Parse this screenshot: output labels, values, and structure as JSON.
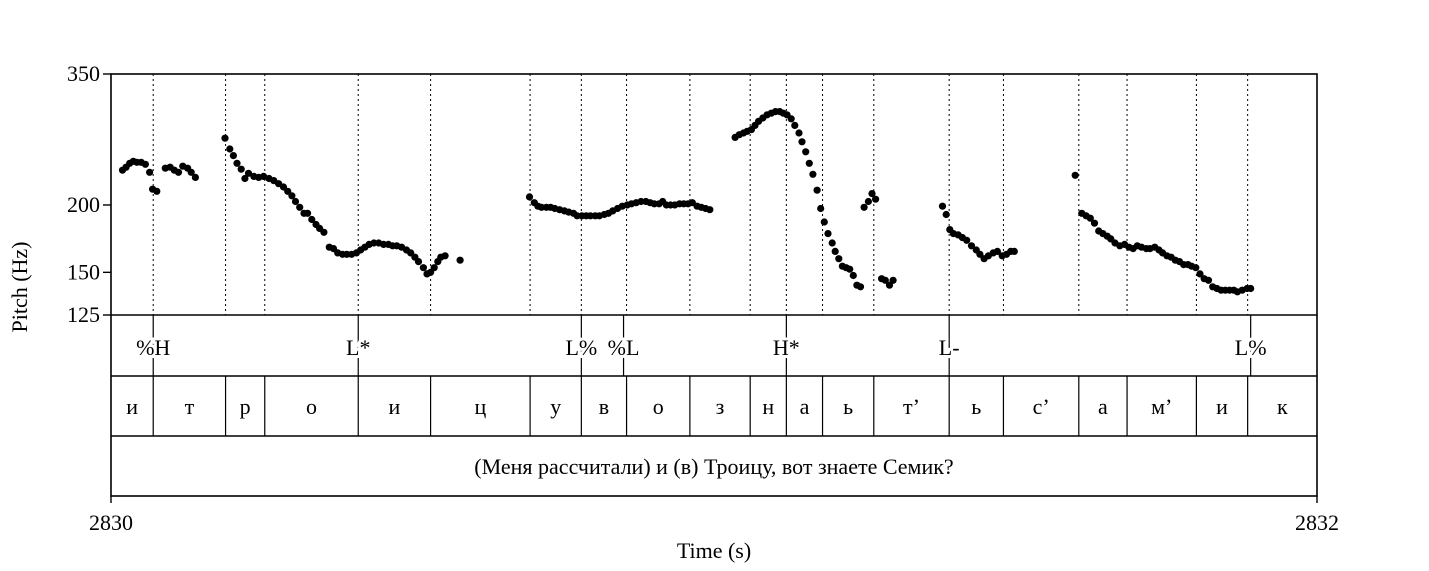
{
  "chart_data": {
    "type": "scatter",
    "xlabel": "Time (s)",
    "ylabel": "Pitch (Hz)",
    "xlim": [
      2830,
      2832
    ],
    "ylim": [
      125,
      350
    ],
    "yscale": "log",
    "x_ticks": [
      "2830",
      "2832"
    ],
    "y_ticks": [
      {
        "label": "350",
        "value": 350
      },
      {
        "label": "200",
        "value": 200
      },
      {
        "label": "150",
        "value": 150
      },
      {
        "label": "125",
        "value": 125
      }
    ],
    "grid": false,
    "tones": [
      {
        "label": "%H",
        "t": 2830.07
      },
      {
        "label": "L*",
        "t": 2830.41
      },
      {
        "label": "L%",
        "t": 2830.78
      },
      {
        "label": "%L",
        "t": 2830.85
      },
      {
        "label": "H*",
        "t": 2831.12
      },
      {
        "label": "L-",
        "t": 2831.39
      },
      {
        "label": "L%",
        "t": 2831.89
      }
    ],
    "segments": [
      {
        "label": "и",
        "start": 2830.0,
        "end": 2830.07
      },
      {
        "label": "т",
        "start": 2830.07,
        "end": 2830.19
      },
      {
        "label": "р",
        "start": 2830.19,
        "end": 2830.255
      },
      {
        "label": "о",
        "start": 2830.255,
        "end": 2830.41
      },
      {
        "label": "и",
        "start": 2830.41,
        "end": 2830.53
      },
      {
        "label": "ц",
        "start": 2830.53,
        "end": 2830.695
      },
      {
        "label": "у",
        "start": 2830.695,
        "end": 2830.78
      },
      {
        "label": "в",
        "start": 2830.78,
        "end": 2830.855
      },
      {
        "label": "о",
        "start": 2830.855,
        "end": 2830.96
      },
      {
        "label": "з",
        "start": 2830.96,
        "end": 2831.06
      },
      {
        "label": "н",
        "start": 2831.06,
        "end": 2831.12
      },
      {
        "label": "а",
        "start": 2831.12,
        "end": 2831.18
      },
      {
        "label": "ь",
        "start": 2831.18,
        "end": 2831.265
      },
      {
        "label": "т’",
        "start": 2831.265,
        "end": 2831.39
      },
      {
        "label": "ь",
        "start": 2831.39,
        "end": 2831.48
      },
      {
        "label": "с’",
        "start": 2831.48,
        "end": 2831.605
      },
      {
        "label": "а",
        "start": 2831.605,
        "end": 2831.685
      },
      {
        "label": "м’",
        "start": 2831.685,
        "end": 2831.8
      },
      {
        "label": "и",
        "start": 2831.8,
        "end": 2831.885
      },
      {
        "label": "к",
        "start": 2831.885,
        "end": 2832.0
      }
    ],
    "sentence": "(Меня рассчитали) и (в) Троицу, вот знаете Семик?",
    "series": [
      {
        "points": [
          [
            2830.019,
            232
          ],
          [
            2830.025,
            235
          ],
          [
            2830.031,
            239
          ],
          [
            2830.037,
            241
          ],
          [
            2830.043,
            240
          ],
          [
            2830.05,
            240
          ],
          [
            2830.057,
            238
          ],
          [
            2830.064,
            230
          ],
          [
            2830.069,
            214
          ],
          [
            2830.076,
            212
          ],
          [
            2830.09,
            234
          ],
          [
            2830.098,
            235
          ],
          [
            2830.105,
            232
          ],
          [
            2830.112,
            230
          ],
          [
            2830.119,
            236
          ],
          [
            2830.127,
            234
          ],
          [
            2830.133,
            230
          ],
          [
            2830.14,
            225
          ],
          [
            2830.189,
            266
          ],
          [
            2830.197,
            254
          ],
          [
            2830.203,
            247
          ],
          [
            2830.209,
            239
          ],
          [
            2830.216,
            233
          ],
          [
            2830.222,
            224
          ],
          [
            2830.228,
            229
          ],
          [
            2830.237,
            226
          ],
          [
            2830.245,
            225
          ],
          [
            2830.253,
            226
          ],
          [
            2830.262,
            224
          ],
          [
            2830.27,
            222
          ],
          [
            2830.278,
            219
          ],
          [
            2830.286,
            216
          ],
          [
            2830.293,
            212
          ],
          [
            2830.3,
            208
          ],
          [
            2830.306,
            203
          ],
          [
            2830.313,
            198
          ],
          [
            2830.32,
            193
          ],
          [
            2830.326,
            193
          ],
          [
            2830.333,
            188
          ],
          [
            2830.34,
            184
          ],
          [
            2830.346,
            181
          ],
          [
            2830.353,
            178
          ],
          [
            2830.362,
            167
          ],
          [
            2830.369,
            166
          ],
          [
            2830.376,
            163
          ],
          [
            2830.384,
            162
          ],
          [
            2830.391,
            162
          ],
          [
            2830.399,
            162
          ],
          [
            2830.407,
            163
          ],
          [
            2830.414,
            165
          ],
          [
            2830.421,
            167
          ],
          [
            2830.428,
            169
          ],
          [
            2830.436,
            170
          ],
          [
            2830.444,
            170
          ],
          [
            2830.452,
            169
          ],
          [
            2830.46,
            169
          ],
          [
            2830.467,
            168
          ],
          [
            2830.474,
            168
          ],
          [
            2830.482,
            167
          ],
          [
            2830.49,
            165
          ],
          [
            2830.497,
            163
          ],
          [
            2830.504,
            160
          ],
          [
            2830.51,
            157
          ],
          [
            2830.518,
            153
          ],
          [
            2830.524,
            149
          ],
          [
            2830.53,
            150
          ],
          [
            2830.536,
            153
          ],
          [
            2830.542,
            157
          ],
          [
            2830.547,
            160
          ],
          [
            2830.554,
            161
          ],
          [
            2830.579,
            158
          ],
          [
            2830.694,
            207
          ],
          [
            2830.702,
            202
          ],
          [
            2830.708,
            199
          ],
          [
            2830.714,
            198
          ],
          [
            2830.722,
            198
          ],
          [
            2830.729,
            198
          ],
          [
            2830.736,
            197
          ],
          [
            2830.744,
            196
          ],
          [
            2830.752,
            195
          ],
          [
            2830.759,
            194
          ],
          [
            2830.767,
            193
          ],
          [
            2830.773,
            191
          ],
          [
            2830.781,
            191
          ],
          [
            2830.788,
            191
          ],
          [
            2830.795,
            191
          ],
          [
            2830.803,
            191
          ],
          [
            2830.81,
            191
          ],
          [
            2830.818,
            192
          ],
          [
            2830.825,
            193
          ],
          [
            2830.832,
            195
          ],
          [
            2830.84,
            197
          ],
          [
            2830.848,
            199
          ],
          [
            2830.856,
            200
          ],
          [
            2830.863,
            201
          ],
          [
            2830.871,
            202
          ],
          [
            2830.879,
            203
          ],
          [
            2830.887,
            203
          ],
          [
            2830.894,
            202
          ],
          [
            2830.901,
            201
          ],
          [
            2830.909,
            201
          ],
          [
            2830.915,
            203
          ],
          [
            2830.921,
            200
          ],
          [
            2830.928,
            200
          ],
          [
            2830.935,
            200
          ],
          [
            2830.943,
            201
          ],
          [
            2830.95,
            201
          ],
          [
            2830.957,
            201
          ],
          [
            2830.964,
            202
          ],
          [
            2830.972,
            199
          ],
          [
            2830.979,
            198
          ],
          [
            2830.986,
            197
          ],
          [
            2830.993,
            196
          ],
          [
            2831.035,
            267
          ],
          [
            2831.042,
            270
          ],
          [
            2831.049,
            272
          ],
          [
            2831.055,
            274
          ],
          [
            2831.062,
            276
          ],
          [
            2831.068,
            281
          ],
          [
            2831.074,
            286
          ],
          [
            2831.081,
            290
          ],
          [
            2831.088,
            294
          ],
          [
            2831.095,
            296
          ],
          [
            2831.102,
            298
          ],
          [
            2831.109,
            298
          ],
          [
            2831.115,
            296
          ],
          [
            2831.121,
            294
          ],
          [
            2831.128,
            289
          ],
          [
            2831.134,
            281
          ],
          [
            2831.141,
            272
          ],
          [
            2831.146,
            262
          ],
          [
            2831.152,
            251
          ],
          [
            2831.158,
            239
          ],
          [
            2831.164,
            228
          ],
          [
            2831.171,
            213
          ],
          [
            2831.177,
            197
          ],
          [
            2831.183,
            186
          ],
          [
            2831.189,
            177
          ],
          [
            2831.196,
            170
          ],
          [
            2831.201,
            164
          ],
          [
            2831.207,
            159
          ],
          [
            2831.213,
            154
          ],
          [
            2831.219,
            153
          ],
          [
            2831.225,
            152
          ],
          [
            2831.231,
            148
          ],
          [
            2831.237,
            142
          ],
          [
            2831.243,
            141
          ],
          [
            2831.249,
            198
          ],
          [
            2831.256,
            203
          ],
          [
            2831.262,
            210
          ],
          [
            2831.268,
            205
          ],
          [
            2831.278,
            146
          ],
          [
            2831.284,
            145
          ],
          [
            2831.291,
            142
          ],
          [
            2831.297,
            145
          ],
          [
            2831.379,
            199
          ],
          [
            2831.385,
            192
          ],
          [
            2831.391,
            180
          ],
          [
            2831.397,
            177
          ],
          [
            2831.405,
            176
          ],
          [
            2831.412,
            174
          ],
          [
            2831.419,
            172
          ],
          [
            2831.427,
            168
          ],
          [
            2831.435,
            165
          ],
          [
            2831.441,
            162
          ],
          [
            2831.448,
            159
          ],
          [
            2831.455,
            161
          ],
          [
            2831.463,
            163
          ],
          [
            2831.47,
            164
          ],
          [
            2831.478,
            161
          ],
          [
            2831.485,
            162
          ],
          [
            2831.492,
            164
          ],
          [
            2831.498,
            164
          ],
          [
            2831.599,
            227
          ],
          [
            2831.61,
            193
          ],
          [
            2831.617,
            191
          ],
          [
            2831.624,
            189
          ],
          [
            2831.631,
            185
          ],
          [
            2831.638,
            179
          ],
          [
            2831.645,
            177
          ],
          [
            2831.652,
            175
          ],
          [
            2831.658,
            173
          ],
          [
            2831.665,
            170
          ],
          [
            2831.673,
            168
          ],
          [
            2831.681,
            169
          ],
          [
            2831.688,
            167
          ],
          [
            2831.695,
            166
          ],
          [
            2831.702,
            168
          ],
          [
            2831.709,
            167
          ],
          [
            2831.717,
            166
          ],
          [
            2831.723,
            166
          ],
          [
            2831.731,
            167
          ],
          [
            2831.738,
            165
          ],
          [
            2831.744,
            163
          ],
          [
            2831.751,
            161
          ],
          [
            2831.758,
            160
          ],
          [
            2831.765,
            158
          ],
          [
            2831.772,
            157
          ],
          [
            2831.779,
            155
          ],
          [
            2831.786,
            155
          ],
          [
            2831.792,
            154
          ],
          [
            2831.799,
            153
          ],
          [
            2831.806,
            149
          ],
          [
            2831.813,
            146
          ],
          [
            2831.82,
            145
          ],
          [
            2831.827,
            141
          ],
          [
            2831.834,
            140
          ],
          [
            2831.841,
            139
          ],
          [
            2831.848,
            139
          ],
          [
            2831.855,
            139
          ],
          [
            2831.862,
            139
          ],
          [
            2831.868,
            138
          ],
          [
            2831.876,
            139
          ],
          [
            2831.884,
            140
          ],
          [
            2831.89,
            140
          ]
        ]
      }
    ]
  }
}
